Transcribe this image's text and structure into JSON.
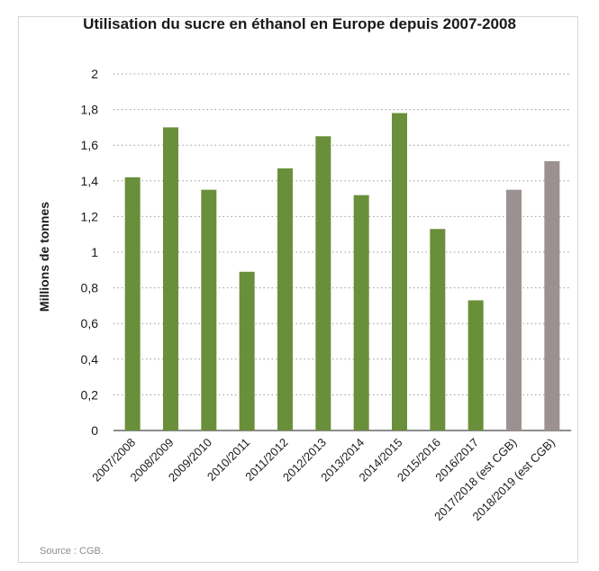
{
  "chart_data": {
    "type": "bar",
    "title": "Utilisation du sucre en éthanol en Europe depuis 2007-2008",
    "ylabel": "Millions de tonnes",
    "xlabel": "",
    "ylim": [
      0,
      2
    ],
    "yticks": [
      "0",
      "0,2",
      "0,4",
      "0,6",
      "0,8",
      "1",
      "1,2",
      "1,4",
      "1,6",
      "1,8",
      "2"
    ],
    "grid": true,
    "categories": [
      "2007/2008",
      "2008/2009",
      "2009/2010",
      "2010/2011",
      "2011/2012",
      "2012/2013",
      "2013/2014",
      "2014/2015",
      "2015/2016",
      "2016/2017",
      "2017/2018 (est CGB)",
      "2018/2019 (est CGB)"
    ],
    "values": [
      1.42,
      1.7,
      1.35,
      0.89,
      1.47,
      1.65,
      1.32,
      1.78,
      1.13,
      0.73,
      1.35,
      1.51
    ],
    "estimated": [
      false,
      false,
      false,
      false,
      false,
      false,
      false,
      false,
      false,
      false,
      true,
      true
    ],
    "colors": {
      "actual": "#6a8f3a",
      "estimated": "#9b9190",
      "grid": "#9a9a9a",
      "axis": "#1a1a1a"
    }
  },
  "source": "Source : CGB."
}
